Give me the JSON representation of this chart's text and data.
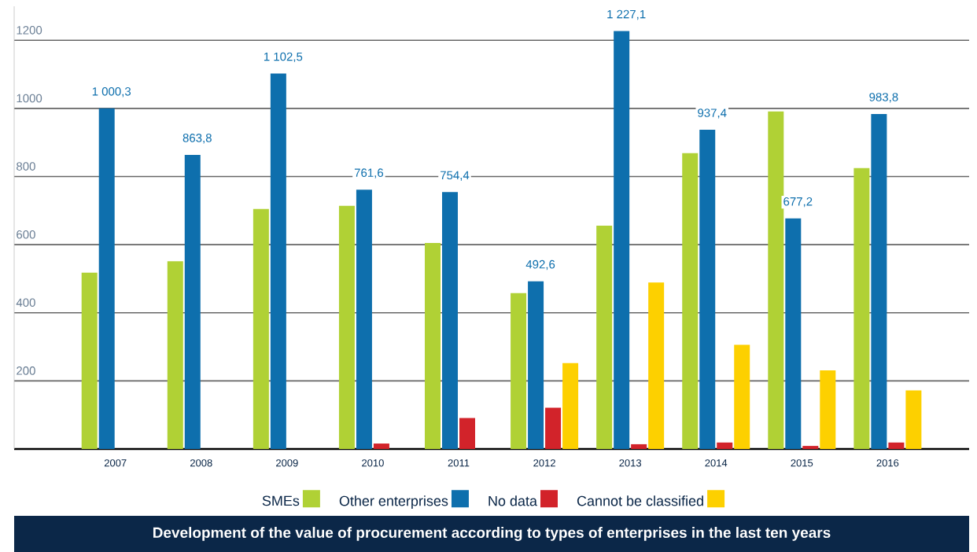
{
  "chart_data": {
    "type": "bar",
    "title": "Development of the value of procurement according to types of enterprises in the last ten years",
    "categories": [
      "2007",
      "2008",
      "2009",
      "2010",
      "2011",
      "2012",
      "2013",
      "2014",
      "2015",
      "2016"
    ],
    "series": [
      {
        "name": "SMEs",
        "color": "#b0d135",
        "values": [
          518,
          551,
          705,
          714,
          605,
          458,
          656,
          869,
          991,
          825
        ]
      },
      {
        "name": "Other enterprises",
        "color": "#0e6fad",
        "values": [
          1000.3,
          863.8,
          1102.5,
          761.6,
          754.4,
          492.6,
          1227.1,
          937.4,
          677.2,
          983.8
        ],
        "value_labels": [
          "1 000,3",
          "863,8",
          "1 102,5",
          "761,6",
          "754,4",
          "492,6",
          "1 227,1",
          "937,4",
          "677,2",
          "983,8"
        ]
      },
      {
        "name": "No data",
        "color": "#d2232a",
        "values": [
          null,
          null,
          null,
          16,
          91,
          121,
          14,
          19,
          9,
          19
        ]
      },
      {
        "name": "Cannot be classified",
        "color": "#fdd000",
        "values": [
          null,
          null,
          null,
          null,
          null,
          252,
          489,
          306,
          231,
          172
        ]
      }
    ],
    "ylim": [
      0,
      1300
    ],
    "yticks": [
      200,
      400,
      600,
      800,
      1000,
      1200
    ],
    "grid": "y",
    "legend": "bottom"
  }
}
